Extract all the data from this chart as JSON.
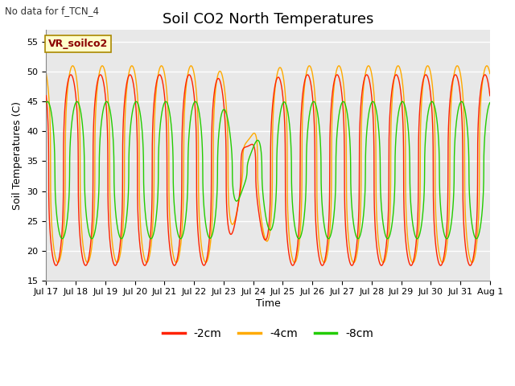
{
  "title": "Soil CO2 North Temperatures",
  "subtitle": "No data for f_TCN_4",
  "annotation": "VR_soilco2",
  "xlabel": "Time",
  "ylabel": "Soil Temperatures (C)",
  "ylim": [
    15,
    57
  ],
  "yticks": [
    15,
    20,
    25,
    30,
    35,
    40,
    45,
    50,
    55
  ],
  "xtick_labels": [
    "Jul 17",
    "Jul 18",
    "Jul 19",
    "Jul 20",
    "Jul 21",
    "Jul 22",
    "Jul 23",
    "Jul 24",
    "Jul 25",
    "Jul 26",
    "Jul 27",
    "Jul 28",
    "Jul 29",
    "Jul 30",
    "Jul 31",
    "Aug 1"
  ],
  "legend_labels": [
    "-2cm",
    "-4cm",
    "-8cm"
  ],
  "line_colors": [
    "#ff2200",
    "#ffaa00",
    "#22cc00"
  ],
  "fig_bg_color": "#ffffff",
  "plot_bg_color": "#e8e8e8",
  "grid_color": "#ffffff",
  "title_fontsize": 13,
  "axis_fontsize": 9,
  "tick_fontsize": 8,
  "legend_fontsize": 10
}
